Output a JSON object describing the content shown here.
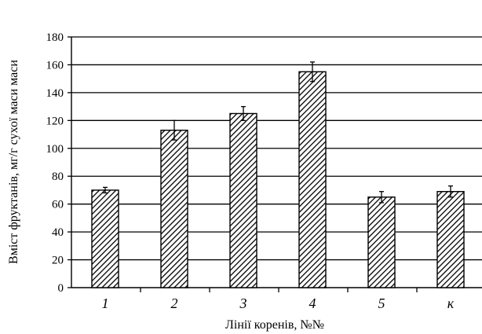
{
  "chart_data": {
    "type": "bar",
    "title": "",
    "xlabel": "Лінії коренів, №№",
    "ylabel": "Вміст фруктанів, мг/г сухої маси маси",
    "categories": [
      "1",
      "2",
      "3",
      "4",
      "5",
      "к"
    ],
    "values": [
      70,
      113,
      125,
      155,
      65,
      69
    ],
    "error": [
      2,
      7,
      5,
      7,
      4,
      4
    ],
    "ylim": [
      0,
      180
    ],
    "yticks": [
      0,
      20,
      40,
      60,
      80,
      100,
      120,
      140,
      160,
      180
    ],
    "grid": true,
    "bar_fill": "diagonal-hatch",
    "colors": {
      "bar_stroke": "#000000",
      "hatch": "#000000",
      "grid": "#000000",
      "background": "#ffffff"
    }
  }
}
